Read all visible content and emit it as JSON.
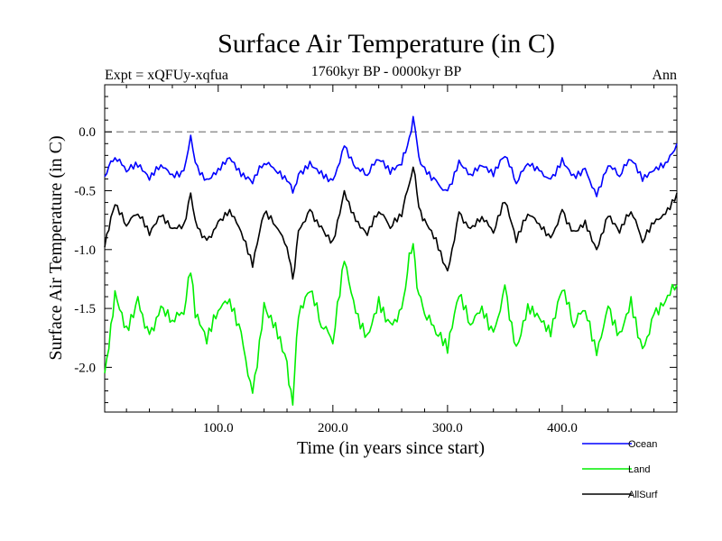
{
  "chart_data": {
    "type": "line",
    "title": "Surface Air Temperature (in C)",
    "subtitle_left": "Expt = xQFUy-xqfua",
    "subtitle_center": "1760kyr BP - 0000kyr BP",
    "subtitle_right": "Ann",
    "xlabel": "Time (in years since start)",
    "ylabel": "Surface Air Temperature (in C)",
    "xlim": [
      1,
      500
    ],
    "ylim": [
      -2.38,
      0.4
    ],
    "xticks": [
      100,
      200,
      300,
      400
    ],
    "xtick_labels": [
      "100.0",
      "200.0",
      "300.0",
      "400.0"
    ],
    "yticks": [
      0.0,
      -0.5,
      -1.0,
      -1.5,
      -2.0
    ],
    "ytick_labels": [
      "0.0",
      "-0.5",
      "-1.0",
      "-1.5",
      "-2.0"
    ],
    "reference_line": {
      "y": 0.0,
      "style": "dashed"
    },
    "series": [
      {
        "name": "Ocean",
        "color": "#0000ff",
        "x": [
          1,
          10,
          20,
          30,
          40,
          50,
          60,
          70,
          76,
          80,
          90,
          100,
          110,
          120,
          130,
          140,
          150,
          160,
          165,
          170,
          180,
          190,
          200,
          210,
          220,
          230,
          240,
          250,
          260,
          265,
          270,
          275,
          280,
          290,
          300,
          310,
          320,
          330,
          340,
          350,
          360,
          370,
          380,
          390,
          400,
          410,
          420,
          430,
          440,
          450,
          460,
          470,
          480,
          490,
          500
        ],
        "values": [
          -0.38,
          -0.22,
          -0.34,
          -0.3,
          -0.41,
          -0.28,
          -0.36,
          -0.33,
          -0.03,
          -0.26,
          -0.4,
          -0.31,
          -0.22,
          -0.38,
          -0.44,
          -0.27,
          -0.33,
          -0.42,
          -0.52,
          -0.36,
          -0.25,
          -0.33,
          -0.41,
          -0.12,
          -0.31,
          -0.37,
          -0.24,
          -0.36,
          -0.28,
          -0.12,
          0.13,
          -0.21,
          -0.3,
          -0.41,
          -0.5,
          -0.24,
          -0.36,
          -0.29,
          -0.38,
          -0.21,
          -0.44,
          -0.27,
          -0.33,
          -0.4,
          -0.22,
          -0.36,
          -0.31,
          -0.55,
          -0.29,
          -0.38,
          -0.24,
          -0.42,
          -0.33,
          -0.26,
          -0.1
        ]
      },
      {
        "name": "Land",
        "color": "#00ee00",
        "x": [
          1,
          10,
          20,
          30,
          40,
          50,
          60,
          70,
          76,
          80,
          90,
          100,
          110,
          120,
          130,
          140,
          150,
          160,
          165,
          170,
          180,
          190,
          200,
          210,
          220,
          230,
          240,
          250,
          260,
          265,
          270,
          275,
          280,
          290,
          300,
          310,
          320,
          330,
          340,
          350,
          360,
          370,
          380,
          390,
          400,
          410,
          420,
          430,
          440,
          450,
          460,
          470,
          480,
          490,
          500
        ],
        "values": [
          -2.05,
          -1.35,
          -1.65,
          -1.4,
          -1.72,
          -1.48,
          -1.6,
          -1.55,
          -1.2,
          -1.58,
          -1.8,
          -1.52,
          -1.42,
          -1.7,
          -2.22,
          -1.45,
          -1.62,
          -1.95,
          -2.32,
          -1.58,
          -1.36,
          -1.66,
          -1.8,
          -1.1,
          -1.54,
          -1.72,
          -1.4,
          -1.62,
          -1.5,
          -1.2,
          -0.95,
          -1.38,
          -1.55,
          -1.72,
          -1.88,
          -1.4,
          -1.64,
          -1.48,
          -1.7,
          -1.3,
          -1.82,
          -1.46,
          -1.58,
          -1.74,
          -1.35,
          -1.66,
          -1.52,
          -1.9,
          -1.48,
          -1.7,
          -1.4,
          -1.84,
          -1.55,
          -1.44,
          -1.3
        ]
      },
      {
        "name": "AllSurf",
        "color": "#000000",
        "x": [
          1,
          10,
          20,
          30,
          40,
          50,
          60,
          70,
          76,
          80,
          90,
          100,
          110,
          120,
          130,
          140,
          150,
          160,
          165,
          170,
          180,
          190,
          200,
          210,
          220,
          230,
          240,
          250,
          260,
          265,
          270,
          275,
          280,
          290,
          300,
          310,
          320,
          330,
          340,
          350,
          360,
          370,
          380,
          390,
          400,
          410,
          420,
          430,
          440,
          450,
          460,
          470,
          480,
          490,
          500
        ],
        "values": [
          -0.98,
          -0.62,
          -0.8,
          -0.7,
          -0.88,
          -0.72,
          -0.82,
          -0.78,
          -0.52,
          -0.75,
          -0.92,
          -0.76,
          -0.66,
          -0.85,
          -1.15,
          -0.7,
          -0.8,
          -0.98,
          -1.25,
          -0.84,
          -0.66,
          -0.8,
          -0.92,
          -0.5,
          -0.76,
          -0.88,
          -0.68,
          -0.82,
          -0.72,
          -0.5,
          -0.3,
          -0.64,
          -0.74,
          -0.9,
          -1.18,
          -0.68,
          -0.82,
          -0.72,
          -0.86,
          -0.6,
          -0.94,
          -0.7,
          -0.78,
          -0.9,
          -0.66,
          -0.84,
          -0.75,
          -1.0,
          -0.72,
          -0.86,
          -0.68,
          -0.94,
          -0.78,
          -0.7,
          -0.52
        ]
      }
    ],
    "legend": [
      {
        "label": "Ocean",
        "color": "#0000ff"
      },
      {
        "label": "Land",
        "color": "#00ee00"
      },
      {
        "label": "AllSurf",
        "color": "#000000"
      }
    ]
  }
}
